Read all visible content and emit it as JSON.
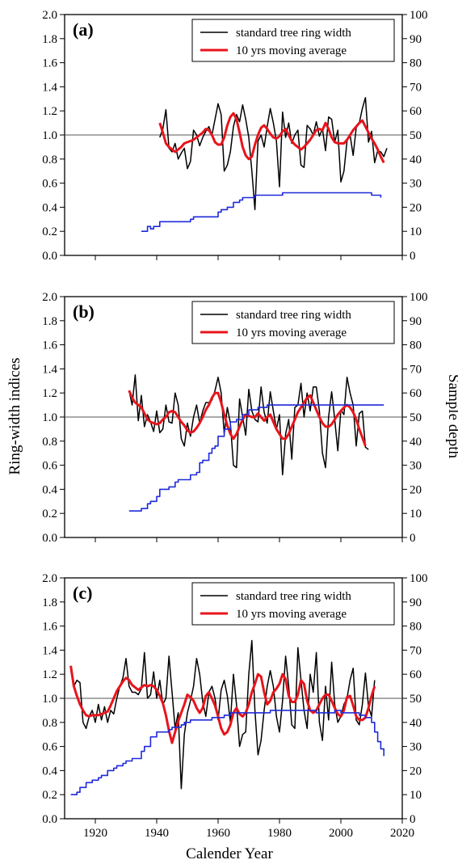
{
  "figure": {
    "x_axis_label": "Calender Year",
    "y_left_label": "Ring-width indices",
    "y_right_label": "Sample depth"
  },
  "colors": {
    "ring_width": "#000000",
    "moving_average": "#e8141b",
    "sample_depth": "#1f2ad9",
    "reference_line": "#555555"
  },
  "chart_data": [
    {
      "type": "line",
      "panel_label": "(a)",
      "xlim": [
        1910,
        2020
      ],
      "xticks": [
        1920,
        1940,
        1960,
        1980,
        2000,
        2020
      ],
      "show_xtick_labels": false,
      "ylim": [
        0.0,
        2.0
      ],
      "yticks": [
        "0.0",
        "0.2",
        "0.4",
        "0.6",
        "0.8",
        "1.0",
        "1.2",
        "1.4",
        "1.6",
        "1.8",
        "2.0"
      ],
      "y2lim": [
        0,
        100
      ],
      "y2ticks": [
        0,
        10,
        20,
        30,
        40,
        50,
        60,
        70,
        80,
        90,
        100
      ],
      "reference_y": 1.0,
      "legend": {
        "position": "top-right",
        "entries": [
          "standard tree ring width",
          "10 yrs moving average"
        ]
      },
      "series": [
        {
          "name": "standard tree ring width",
          "axis": "left",
          "role": "ring_width",
          "x_start": 1941,
          "values": [
            0.98,
            1.05,
            1.21,
            0.89,
            0.86,
            0.93,
            0.8,
            0.85,
            0.89,
            0.72,
            0.78,
            1.04,
            1.0,
            0.91,
            0.98,
            1.03,
            1.07,
            1.0,
            1.13,
            1.26,
            1.17,
            0.7,
            0.75,
            0.86,
            1.07,
            1.17,
            1.11,
            1.25,
            1.13,
            0.98,
            0.7,
            0.38,
            0.95,
            1.0,
            0.9,
            1.07,
            1.22,
            1.1,
            0.95,
            0.57,
            1.19,
            0.98,
            1.1,
            0.93,
            1.0,
            1.04,
            0.75,
            0.73,
            1.08,
            1.05,
            1.0,
            1.11,
            0.99,
            1.05,
            0.87,
            1.15,
            1.13,
            0.94,
            1.04,
            0.61,
            0.7,
            0.95,
            1.0,
            0.83,
            1.06,
            1.1,
            1.22,
            1.31,
            0.94,
            1.03,
            0.77,
            0.87,
            0.86,
            0.82,
            0.89
          ]
        },
        {
          "name": "10 yrs moving average",
          "axis": "left",
          "role": "moving_average",
          "x_start": 1941,
          "values": [
            1.1,
            1.02,
            0.93,
            0.9,
            0.88,
            0.86,
            0.88,
            0.9,
            0.93,
            0.94,
            0.95,
            0.96,
            0.98,
            1.0,
            1.02,
            1.05,
            1.04,
            1.0,
            0.94,
            0.92,
            0.92,
            0.98,
            1.08,
            1.15,
            1.18,
            1.13,
            1.02,
            0.9,
            0.83,
            0.8,
            0.82,
            0.92,
            1.0,
            1.06,
            1.08,
            1.05,
            1.01,
            0.98,
            0.97,
            0.99,
            1.03,
            1.05,
            1.0,
            0.95,
            0.92,
            0.9,
            0.88,
            0.9,
            0.93,
            0.96,
            1.0,
            1.04,
            1.05,
            1.04,
            1.1,
            1.05,
            0.98,
            0.94,
            0.93,
            0.93,
            0.93,
            0.96,
            1.0,
            1.04,
            1.07,
            1.1,
            1.12,
            1.07,
            1.02,
            0.97,
            0.93,
            0.88,
            0.82,
            0.77
          ]
        },
        {
          "name": "sample depth",
          "axis": "right",
          "role": "sample_depth",
          "x": [
            1935,
            1937,
            1938,
            1939,
            1940,
            1941,
            1942,
            1946,
            1947,
            1951,
            1952,
            1957,
            1958,
            1960,
            1961,
            1963,
            1965,
            1967,
            1968,
            1971,
            1972,
            1980,
            1981,
            2009,
            2010,
            2012,
            2013
          ],
          "values": [
            10,
            12,
            11,
            12,
            12,
            14,
            14,
            14,
            14,
            15,
            16,
            16,
            16,
            18,
            19,
            20,
            22,
            23,
            24,
            24,
            25,
            25,
            26,
            26,
            25,
            25,
            24
          ]
        }
      ]
    },
    {
      "type": "line",
      "panel_label": "(b)",
      "xlim": [
        1910,
        2020
      ],
      "xticks": [
        1920,
        1940,
        1960,
        1980,
        2000,
        2020
      ],
      "show_xtick_labels": false,
      "ylim": [
        0.0,
        2.0
      ],
      "yticks": [
        "0.0",
        "0.2",
        "0.4",
        "0.6",
        "0.8",
        "1.0",
        "1.2",
        "1.4",
        "1.6",
        "1.8",
        "2.0"
      ],
      "y2lim": [
        0,
        100
      ],
      "y2ticks": [
        0,
        10,
        20,
        30,
        40,
        50,
        60,
        70,
        80,
        90,
        100
      ],
      "reference_y": 1.0,
      "legend": {
        "position": "top-right",
        "entries": [
          "standard tree ring width",
          "10 yrs moving average"
        ]
      },
      "series": [
        {
          "name": "standard tree ring width",
          "axis": "left",
          "role": "ring_width",
          "x_start": 1931,
          "values": [
            1.22,
            1.1,
            1.35,
            0.97,
            1.18,
            0.92,
            1.02,
            0.96,
            0.88,
            1.05,
            0.87,
            0.9,
            1.1,
            0.96,
            0.95,
            1.2,
            1.1,
            0.82,
            0.76,
            0.95,
            0.84,
            1.0,
            1.1,
            0.95,
            1.05,
            1.12,
            1.12,
            1.14,
            1.22,
            1.33,
            1.2,
            0.86,
            1.08,
            0.95,
            0.6,
            0.58,
            1.15,
            1.0,
            0.85,
            1.23,
            1.05,
            0.98,
            0.96,
            1.25,
            1.04,
            0.95,
            1.21,
            1.05,
            0.9,
            1.02,
            0.52,
            0.86,
            0.98,
            0.65,
            1.08,
            1.1,
            1.28,
            1.0,
            1.2,
            1.05,
            1.25,
            1.25,
            1.05,
            0.7,
            0.58,
            1.0,
            1.21,
            0.98,
            0.72,
            1.06,
            1.02,
            1.33,
            1.2,
            1.1,
            0.76,
            1.03,
            1.05,
            0.75,
            0.73
          ]
        },
        {
          "name": "10 yrs moving average",
          "axis": "left",
          "role": "moving_average",
          "x_start": 1931,
          "values": [
            1.22,
            1.16,
            1.12,
            1.1,
            1.08,
            1.03,
            0.98,
            0.96,
            0.95,
            0.94,
            0.95,
            0.98,
            1.0,
            1.04,
            1.05,
            1.04,
            1.0,
            0.96,
            0.93,
            0.89,
            0.87,
            0.88,
            0.91,
            0.95,
            1.0,
            1.06,
            1.1,
            1.16,
            1.2,
            1.2,
            1.12,
            1.02,
            0.93,
            0.86,
            0.82,
            0.86,
            0.92,
            0.98,
            1.02,
            1.01,
            1.0,
            1.0,
            1.03,
            1.0,
            0.97,
            1.0,
            1.02,
            0.96,
            0.9,
            0.86,
            0.82,
            0.82,
            0.86,
            0.92,
            0.98,
            1.04,
            1.08,
            1.12,
            1.16,
            1.18,
            1.12,
            1.06,
            1.0,
            0.95,
            0.92,
            0.92,
            0.94,
            0.98,
            1.02,
            1.05,
            1.08,
            1.1,
            1.08,
            1.04,
            0.98,
            0.9,
            0.83,
            0.76
          ]
        },
        {
          "name": "sample depth",
          "axis": "right",
          "role": "sample_depth",
          "x": [
            1931,
            1934,
            1935,
            1937,
            1938,
            1940,
            1941,
            1943,
            1944,
            1946,
            1947,
            1950,
            1951,
            1953,
            1954,
            1955,
            1957,
            1958,
            1959,
            1960,
            1962,
            1964,
            1966,
            1968,
            1970,
            1973,
            1976,
            2014
          ],
          "values": [
            11,
            11,
            12,
            14,
            15,
            17,
            20,
            20,
            21,
            23,
            24,
            24,
            26,
            27,
            31,
            32,
            35,
            37,
            38,
            42,
            45,
            48,
            49,
            51,
            53,
            54,
            55,
            55
          ]
        }
      ]
    },
    {
      "type": "line",
      "panel_label": "(c)",
      "xlim": [
        1910,
        2020
      ],
      "xticks": [
        1920,
        1940,
        1960,
        1980,
        2000,
        2020
      ],
      "show_xtick_labels": true,
      "ylim": [
        0.0,
        2.0
      ],
      "yticks": [
        "0.0",
        "0.2",
        "0.4",
        "0.6",
        "0.8",
        "1.0",
        "1.2",
        "1.4",
        "1.6",
        "1.8",
        "2.0"
      ],
      "y2lim": [
        0,
        100
      ],
      "y2ticks": [
        0,
        10,
        20,
        30,
        40,
        50,
        60,
        70,
        80,
        90,
        100
      ],
      "reference_y": 1.0,
      "legend": {
        "position": "top-right",
        "entries": [
          "standard tree ring width",
          "10 yrs moving average"
        ]
      },
      "series": [
        {
          "name": "standard tree ring width",
          "axis": "left",
          "role": "ring_width",
          "x_start": 1912,
          "values": [
            1.27,
            1.1,
            1.15,
            1.13,
            0.8,
            0.75,
            0.85,
            0.9,
            0.8,
            0.95,
            0.82,
            0.93,
            0.8,
            0.9,
            0.87,
            1.0,
            1.1,
            1.17,
            1.33,
            1.1,
            1.05,
            1.05,
            1.03,
            1.08,
            1.38,
            1.0,
            1.03,
            1.22,
            1.0,
            1.15,
            0.95,
            1.0,
            1.35,
            1.05,
            0.75,
            0.88,
            0.25,
            0.7,
            0.88,
            0.98,
            1.1,
            1.33,
            1.2,
            0.97,
            0.85,
            1.05,
            1.1,
            1.0,
            0.82,
            1.07,
            1.15,
            1.02,
            0.8,
            1.2,
            0.95,
            0.6,
            0.7,
            0.72,
            1.2,
            1.48,
            0.9,
            0.53,
            0.65,
            0.9,
            1.1,
            1.23,
            1.1,
            0.85,
            0.72,
            0.98,
            1.35,
            1.1,
            0.78,
            0.75,
            1.42,
            1.15,
            0.9,
            0.75,
            1.2,
            1.05,
            1.38,
            0.8,
            0.65,
            1.1,
            0.82,
            1.3,
            0.95,
            0.8,
            0.85,
            0.95,
            1.0,
            1.15,
            1.25,
            0.82,
            0.78,
            0.95,
            1.21,
            0.93,
            0.85,
            1.15
          ]
        },
        {
          "name": "10 yrs moving average",
          "axis": "left",
          "role": "moving_average",
          "x_start": 1912,
          "values": [
            1.27,
            1.1,
            1.02,
            0.95,
            0.9,
            0.86,
            0.85,
            0.86,
            0.86,
            0.86,
            0.87,
            0.88,
            0.89,
            0.94,
            1.0,
            1.06,
            1.1,
            1.14,
            1.17,
            1.15,
            1.11,
            1.09,
            1.07,
            1.09,
            1.11,
            1.1,
            1.11,
            1.1,
            1.07,
            1.02,
            0.96,
            0.86,
            0.73,
            0.63,
            0.72,
            0.81,
            0.88,
            0.95,
            1.03,
            1.01,
            0.98,
            0.92,
            0.88,
            0.92,
            1.02,
            1.05,
            1.0,
            0.94,
            0.85,
            0.75,
            0.7,
            0.72,
            0.78,
            0.88,
            0.92,
            0.87,
            0.85,
            0.88,
            0.95,
            1.05,
            1.12,
            1.2,
            1.18,
            1.05,
            0.95,
            0.98,
            1.05,
            1.08,
            1.12,
            1.2,
            1.16,
            1.02,
            0.97,
            0.97,
            1.03,
            1.15,
            1.12,
            0.98,
            0.9,
            0.88,
            0.9,
            0.95,
            1.0,
            1.03,
            1.03,
            0.98,
            0.92,
            0.87,
            0.85,
            0.9,
            1.01,
            1.02,
            0.94,
            0.85,
            0.82,
            0.82,
            0.84,
            0.92,
            1.02,
            1.1
          ]
        },
        {
          "name": "sample depth",
          "axis": "right",
          "role": "sample_depth",
          "x": [
            1912,
            1913,
            1914,
            1915,
            1917,
            1919,
            1921,
            1922,
            1924,
            1926,
            1927,
            1929,
            1930,
            1932,
            1935,
            1936,
            1938,
            1940,
            1942,
            1944,
            1945,
            1948,
            1949,
            1951,
            1952,
            1955,
            1958,
            1962,
            1964,
            1966,
            1972,
            1975,
            1977,
            1979,
            1980,
            1982,
            1984,
            1986,
            1988,
            1990,
            1992,
            1994,
            1996,
            1998,
            2000,
            2002,
            2004,
            2006,
            2008,
            2010,
            2011,
            2012,
            2013,
            2014
          ],
          "values": [
            10,
            10,
            11,
            13,
            15,
            16,
            17,
            18,
            20,
            21,
            22,
            23,
            24,
            25,
            28,
            30,
            34,
            36,
            36,
            37,
            38,
            39,
            40,
            41,
            41,
            41,
            42,
            43,
            44,
            44,
            44,
            44,
            45,
            45,
            45,
            45,
            45,
            45,
            45,
            45,
            44,
            44,
            44,
            45,
            44,
            44,
            44,
            43,
            42,
            40,
            36,
            32,
            29,
            26
          ]
        }
      ]
    }
  ]
}
